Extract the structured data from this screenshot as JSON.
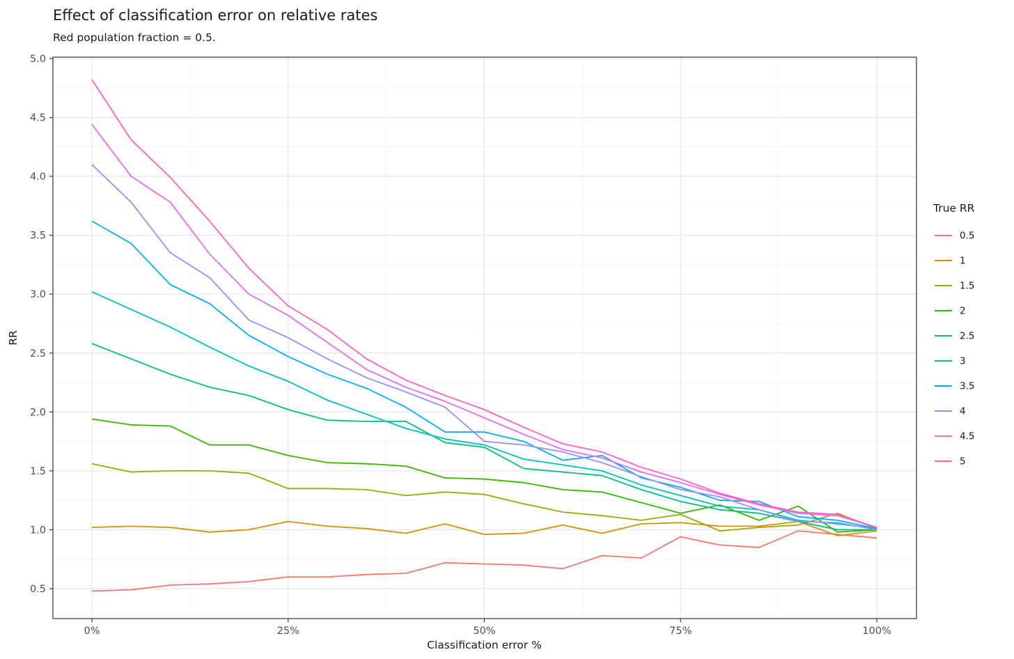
{
  "header": {
    "title": "Effect of classification error on relative rates",
    "subtitle": "Red population fraction = 0.5."
  },
  "chart_data": {
    "type": "line",
    "title": "Effect of classification error on relative rates",
    "subtitle": "Red population fraction = 0.5.",
    "xlabel": "Classification error %",
    "ylabel": "RR",
    "x": [
      0,
      5,
      10,
      15,
      20,
      25,
      30,
      35,
      40,
      45,
      50,
      55,
      60,
      65,
      70,
      75,
      80,
      85,
      90,
      95,
      100
    ],
    "x_ticks": [
      0,
      25,
      50,
      75,
      100
    ],
    "x_tick_labels": [
      "0%",
      "25%",
      "50%",
      "75%",
      "100%"
    ],
    "x_minor_ticks": [
      12.5,
      37.5,
      62.5,
      87.5
    ],
    "y_ticks": [
      0.5,
      1.0,
      1.5,
      2.0,
      2.5,
      3.0,
      3.5,
      4.0,
      4.5,
      5.0
    ],
    "y_tick_labels": [
      "0.5",
      "1.0",
      "1.5",
      "2.0",
      "2.5",
      "3.0",
      "3.5",
      "4.0",
      "4.5",
      "5.0"
    ],
    "y_minor_ticks": [
      0.75,
      1.25,
      1.75,
      2.25,
      2.75,
      3.25,
      3.75,
      4.25,
      4.75
    ],
    "xlim": [
      -5.2,
      105.2
    ],
    "ylim": [
      0.425,
      5.03
    ],
    "grid": "major+minor",
    "legend_title": "True RR",
    "legend_position": "right",
    "panel_border_color": "#333333",
    "grid_major_color": "#e6e6e6",
    "grid_minor_color": "#f0f0f0",
    "axis_text_color": "#4d4d4d",
    "series": [
      {
        "name": "0.5",
        "color": "#F8766D",
        "values": [
          0.48,
          0.49,
          0.53,
          0.54,
          0.56,
          0.6,
          0.6,
          0.62,
          0.63,
          0.72,
          0.71,
          0.7,
          0.67,
          0.78,
          0.76,
          0.94,
          0.87,
          0.85,
          0.99,
          0.96,
          0.93
        ]
      },
      {
        "name": "1",
        "color": "#D89000",
        "values": [
          1.02,
          1.03,
          1.02,
          0.98,
          1.0,
          1.07,
          1.03,
          1.01,
          0.97,
          1.05,
          0.96,
          0.97,
          1.04,
          0.97,
          1.05,
          1.06,
          1.03,
          1.03,
          1.07,
          0.95,
          0.99
        ]
      },
      {
        "name": "1.5",
        "color": "#A3A500",
        "values": [
          1.56,
          1.49,
          1.5,
          1.5,
          1.48,
          1.35,
          1.35,
          1.34,
          1.29,
          1.32,
          1.3,
          1.22,
          1.15,
          1.12,
          1.08,
          1.13,
          0.99,
          1.02,
          1.04,
          1.14,
          1.01
        ]
      },
      {
        "name": "2",
        "color": "#39B600",
        "values": [
          1.94,
          1.89,
          1.88,
          1.72,
          1.72,
          1.63,
          1.57,
          1.56,
          1.54,
          1.44,
          1.43,
          1.4,
          1.34,
          1.32,
          1.23,
          1.14,
          1.21,
          1.08,
          1.2,
          0.98,
          1.0
        ]
      },
      {
        "name": "2.5",
        "color": "#00BF7D",
        "values": [
          2.58,
          2.45,
          2.32,
          2.21,
          2.14,
          2.02,
          1.93,
          1.92,
          1.92,
          1.74,
          1.7,
          1.52,
          1.49,
          1.46,
          1.34,
          1.24,
          1.17,
          1.14,
          1.07,
          1.0,
          1.0
        ]
      },
      {
        "name": "3",
        "color": "#00BFC4",
        "values": [
          3.02,
          2.87,
          2.72,
          2.55,
          2.39,
          2.26,
          2.1,
          1.98,
          1.86,
          1.77,
          1.72,
          1.6,
          1.55,
          1.5,
          1.38,
          1.29,
          1.2,
          1.17,
          1.08,
          1.05,
          1.01
        ]
      },
      {
        "name": "3.5",
        "color": "#00B0F6",
        "values": [
          3.62,
          3.43,
          3.08,
          2.92,
          2.65,
          2.47,
          2.32,
          2.2,
          2.04,
          1.83,
          1.83,
          1.75,
          1.59,
          1.63,
          1.44,
          1.36,
          1.25,
          1.24,
          1.11,
          1.08,
          1.01
        ]
      },
      {
        "name": "4",
        "color": "#9590FF",
        "values": [
          4.1,
          3.78,
          3.35,
          3.14,
          2.78,
          2.63,
          2.45,
          2.29,
          2.17,
          2.04,
          1.75,
          1.72,
          1.66,
          1.57,
          1.45,
          1.34,
          1.28,
          1.17,
          1.07,
          1.06,
          1.0
        ]
      },
      {
        "name": "4.5",
        "color": "#E76BF3",
        "values": [
          4.44,
          4.0,
          3.78,
          3.34,
          3.0,
          2.82,
          2.59,
          2.36,
          2.21,
          2.09,
          1.95,
          1.81,
          1.68,
          1.61,
          1.49,
          1.4,
          1.3,
          1.21,
          1.14,
          1.12,
          1.02
        ]
      },
      {
        "name": "5",
        "color": "#FF62BC",
        "values": [
          4.82,
          4.31,
          3.99,
          3.62,
          3.22,
          2.9,
          2.7,
          2.45,
          2.27,
          2.14,
          2.02,
          1.87,
          1.73,
          1.66,
          1.53,
          1.43,
          1.31,
          1.22,
          1.15,
          1.13,
          1.02
        ]
      }
    ]
  }
}
